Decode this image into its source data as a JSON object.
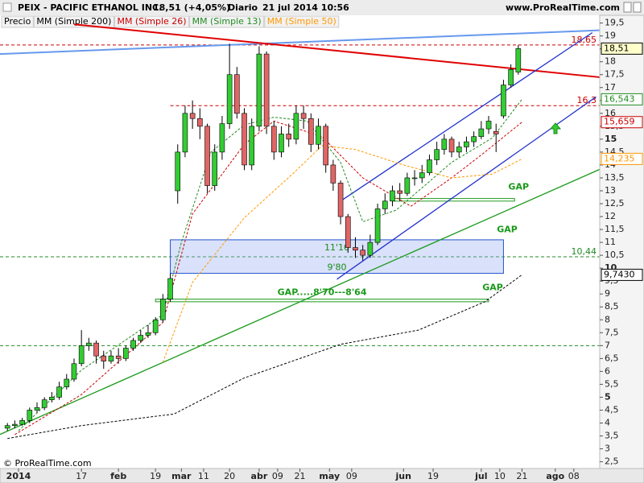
{
  "header": {
    "symbol": "PEIX - PACIFIC ETHANOL INC.",
    "quote": "18,51 (+4,05%)",
    "period": "Diario",
    "datetime": "21 jul 2014 10:56",
    "site": "www.ProRealTime.com"
  },
  "footer": "© ProRealTime.com",
  "chart_data": {
    "type": "candlestick",
    "name": "Precio",
    "up_color": "#33cc33",
    "down_color": "#e06666",
    "x": [
      0,
      2,
      4,
      6,
      8,
      10,
      12,
      14,
      16,
      18,
      20,
      22,
      24,
      26,
      28,
      30,
      32,
      34,
      36,
      38,
      40,
      42,
      44,
      46,
      48,
      50,
      52,
      54,
      56,
      58,
      60,
      62,
      64,
      66,
      68,
      70,
      72,
      74,
      76,
      78,
      80,
      82,
      84,
      86,
      88,
      90,
      92,
      94,
      96,
      98,
      100,
      102,
      104,
      106,
      108,
      110,
      112,
      114,
      116,
      118,
      120,
      122,
      124,
      126,
      128,
      130,
      132,
      134,
      136,
      138
    ],
    "open": [
      3.8,
      3.9,
      3.95,
      4.1,
      4.5,
      4.6,
      4.9,
      5.0,
      5.4,
      5.7,
      6.3,
      7.0,
      7.1,
      6.6,
      6.4,
      6.6,
      6.5,
      6.9,
      7.2,
      7.4,
      7.5,
      8.0,
      8.8,
      13.0,
      14.5,
      16.0,
      15.8,
      15.5,
      13.2,
      14.5,
      15.6,
      17.5,
      16.0,
      14.0,
      15.5,
      18.3,
      15.5,
      14.5,
      15.2,
      15.0,
      16.0,
      15.8,
      14.8,
      15.5,
      14.0,
      13.3,
      12.0,
      10.8,
      10.7,
      10.5,
      11.0,
      12.3,
      12.6,
      13.0,
      12.9,
      13.5,
      13.5,
      13.7,
      14.2,
      14.6,
      15.0,
      14.5,
      14.7,
      14.9,
      15.1,
      15.4,
      15.3,
      15.9,
      17.1,
      17.6
    ],
    "high": [
      4.0,
      4.1,
      4.2,
      4.6,
      4.8,
      5.0,
      5.2,
      5.6,
      5.9,
      6.5,
      7.6,
      7.3,
      7.2,
      6.8,
      6.8,
      6.9,
      7.0,
      7.3,
      7.6,
      7.8,
      8.1,
      9.0,
      9.8,
      14.8,
      16.3,
      16.5,
      16.2,
      15.6,
      14.8,
      15.9,
      18.7,
      17.8,
      16.2,
      15.8,
      18.6,
      18.4,
      15.7,
      15.5,
      15.6,
      16.3,
      16.3,
      16.0,
      15.8,
      15.6,
      14.2,
      13.4,
      12.1,
      11.2,
      10.9,
      11.3,
      12.5,
      12.9,
      13.2,
      13.3,
      13.7,
      13.8,
      14.0,
      14.4,
      14.9,
      15.2,
      15.1,
      14.9,
      15.1,
      15.3,
      15.7,
      15.9,
      15.6,
      17.3,
      17.9,
      18.65
    ],
    "low": [
      3.7,
      3.8,
      3.9,
      4.0,
      4.4,
      4.5,
      4.8,
      4.9,
      5.3,
      5.6,
      6.2,
      6.8,
      6.3,
      6.1,
      6.3,
      6.3,
      6.4,
      6.8,
      7.1,
      7.3,
      7.4,
      7.9,
      8.7,
      12.5,
      14.3,
      15.4,
      15.0,
      12.9,
      13.0,
      14.2,
      15.4,
      15.8,
      13.8,
      13.8,
      15.3,
      15.2,
      14.2,
      14.3,
      14.7,
      14.8,
      15.4,
      14.5,
      14.6,
      13.7,
      13.0,
      11.7,
      10.6,
      10.4,
      10.3,
      10.4,
      10.9,
      12.1,
      12.4,
      12.6,
      12.8,
      13.2,
      13.3,
      13.6,
      14.0,
      14.4,
      14.3,
      14.3,
      14.5,
      14.7,
      15.0,
      15.2,
      14.5,
      15.8,
      17.0,
      17.5
    ],
    "close": [
      3.9,
      3.95,
      4.1,
      4.5,
      4.6,
      4.9,
      5.0,
      5.4,
      5.7,
      6.3,
      7.0,
      7.1,
      6.6,
      6.4,
      6.6,
      6.5,
      6.9,
      7.2,
      7.4,
      7.5,
      8.0,
      8.8,
      9.6,
      14.5,
      16.0,
      15.8,
      15.5,
      13.2,
      14.5,
      15.6,
      17.5,
      16.0,
      14.0,
      15.5,
      18.3,
      15.5,
      14.5,
      15.2,
      15.0,
      16.0,
      15.8,
      14.8,
      15.5,
      14.0,
      13.3,
      12.0,
      10.8,
      10.7,
      10.5,
      11.0,
      12.3,
      12.6,
      13.0,
      12.9,
      13.5,
      13.5,
      13.7,
      14.2,
      14.6,
      15.0,
      14.5,
      14.7,
      14.9,
      15.1,
      15.4,
      15.7,
      15.2,
      17.1,
      17.7,
      18.51
    ],
    "last_label": "18,51",
    "series": [
      {
        "name": "MM (Simple 200)",
        "color": "#000000",
        "x": [
          0,
          20,
          45,
          64,
          90,
          111,
          129,
          139
        ],
        "values": [
          3.4,
          3.9,
          4.35,
          5.75,
          7.05,
          7.6,
          8.7,
          9.743
        ],
        "last_label": "9,7430"
      },
      {
        "name": "MM (Simple 26)",
        "color": "#cc0000",
        "x": [
          2,
          20,
          42,
          50,
          64,
          72,
          85,
          96,
          109,
          120,
          129,
          139
        ],
        "values": [
          3.55,
          5.1,
          7.9,
          12.1,
          14.8,
          15.7,
          15.1,
          13.5,
          12.4,
          13.5,
          14.5,
          15.659
        ],
        "last_label": "15,659"
      },
      {
        "name": "MM (Simple 13)",
        "color": "#228b22",
        "x": [
          3,
          20,
          42,
          47,
          55,
          64,
          72,
          81,
          90,
          96,
          105,
          120,
          131,
          139
        ],
        "values": [
          3.7,
          6.05,
          8.2,
          11.0,
          14.5,
          15.55,
          15.85,
          15.7,
          14.1,
          11.8,
          12.25,
          14.1,
          15.05,
          16.543
        ],
        "last_label": "16,543"
      },
      {
        "name": "MM (Simple 50)",
        "color": "#ff9900",
        "x": [
          42,
          50,
          64,
          77,
          85,
          94,
          107,
          120,
          131,
          139
        ],
        "values": [
          6.35,
          9.45,
          11.95,
          13.65,
          14.75,
          14.6,
          14.0,
          13.5,
          13.65,
          14.235
        ],
        "last_label": "14,235"
      }
    ],
    "xlim": [
      -2,
      160
    ],
    "ylim": [
      2.3,
      19.8
    ],
    "yticks": [
      {
        "value": 19.5,
        "label": "19,5"
      },
      19,
      {
        "value": 18.5,
        "label": "18,5"
      },
      18,
      {
        "value": 17.5,
        "label": "17,5"
      },
      17,
      {
        "value": 16.5,
        "label": "16,5"
      },
      16,
      {
        "value": 15.5,
        "label": "15,5"
      },
      15,
      {
        "value": 14.5,
        "label": "14,5"
      },
      14,
      {
        "value": 13.5,
        "label": "13,5"
      },
      13,
      {
        "value": 12.5,
        "label": "12,5"
      },
      12,
      {
        "value": 11.5,
        "label": "11,5"
      },
      11,
      {
        "value": 10.5,
        "label": "10,5"
      },
      10,
      {
        "value": 9.5,
        "label": "9,5"
      },
      9,
      {
        "value": 8.5,
        "label": "8,5"
      },
      8,
      {
        "value": 7.5,
        "label": "7,5"
      },
      7,
      {
        "value": 6.5,
        "label": "6,5"
      },
      6,
      {
        "value": 5.5,
        "label": "5,5"
      },
      5,
      {
        "value": 4.5,
        "label": "4,5"
      },
      4,
      {
        "value": 3.5,
        "label": "3,5"
      },
      3,
      {
        "value": 2.5,
        "label": "2,5"
      }
    ],
    "xticks": [
      {
        "value": 3,
        "label": "2014"
      },
      {
        "value": 20,
        "label": "17"
      },
      {
        "value": 30,
        "label": "feb"
      },
      {
        "value": 40,
        "label": "19"
      },
      {
        "value": 47,
        "label": "mar"
      },
      {
        "value": 53,
        "label": "11"
      },
      {
        "value": 60,
        "label": "20"
      },
      {
        "value": 68,
        "label": "abr"
      },
      {
        "value": 73,
        "label": "09"
      },
      {
        "value": 79,
        "label": "21"
      },
      {
        "value": 87,
        "label": "may"
      },
      {
        "value": 93,
        "label": "09"
      },
      {
        "value": 107,
        "label": "jun"
      },
      {
        "value": 115,
        "label": "19"
      },
      {
        "value": 128,
        "label": "jul"
      },
      {
        "value": 133,
        "label": "10"
      },
      {
        "value": 139,
        "label": "21"
      },
      {
        "value": 148,
        "label": "ago"
      },
      {
        "value": 153,
        "label": "08"
      }
    ],
    "levels": [
      {
        "value": 18.65,
        "label": "18,65",
        "color": "#cc0000",
        "from": -2
      },
      {
        "value": 16.3,
        "label": "16,3",
        "color": "#cc0000",
        "from": 44
      },
      {
        "value": 10.44,
        "label": "10,44",
        "color": "#228b22",
        "from": -2
      },
      {
        "value": 7.0,
        "color": "#228b22",
        "from": -2
      }
    ],
    "trendlines": [
      {
        "color": "#6699ee",
        "x": [
          -2,
          160
        ],
        "y": [
          18.3,
          19.22
        ]
      },
      {
        "color": "#e00000",
        "x": [
          18,
          160
        ],
        "y": [
          19.45,
          17.4
        ]
      },
      {
        "color": "#2233cc",
        "x": [
          90,
          158
        ],
        "y": [
          12.6,
          19.13
        ]
      },
      {
        "color": "#2233cc",
        "x": [
          89,
          159
        ],
        "y": [
          9.57,
          16.64
        ]
      },
      {
        "color": "#1a9a1a",
        "x": [
          -2,
          160
        ],
        "y": [
          3.56,
          13.83
        ]
      }
    ],
    "zones": [
      {
        "x": [
          44,
          134
        ],
        "y": [
          9.8,
          11.1
        ],
        "labels": [
          "9'80",
          "11'10"
        ],
        "color": "#2255cc"
      },
      {
        "x": [
          104,
          137
        ],
        "y": [
          12.6,
          12.7
        ],
        "labels": [
          "GAP"
        ],
        "color": "#1a9a1a"
      },
      {
        "x": [
          40,
          130
        ],
        "y": [
          8.7,
          8.8
        ],
        "labels": [
          "GAP.....8'70---8'64",
          "GAP"
        ],
        "color": "#1a9a1a"
      }
    ],
    "annotations": [
      {
        "text": "GAP",
        "x": 135,
        "y": 11.49,
        "color": "#1a9a1a"
      }
    ]
  }
}
